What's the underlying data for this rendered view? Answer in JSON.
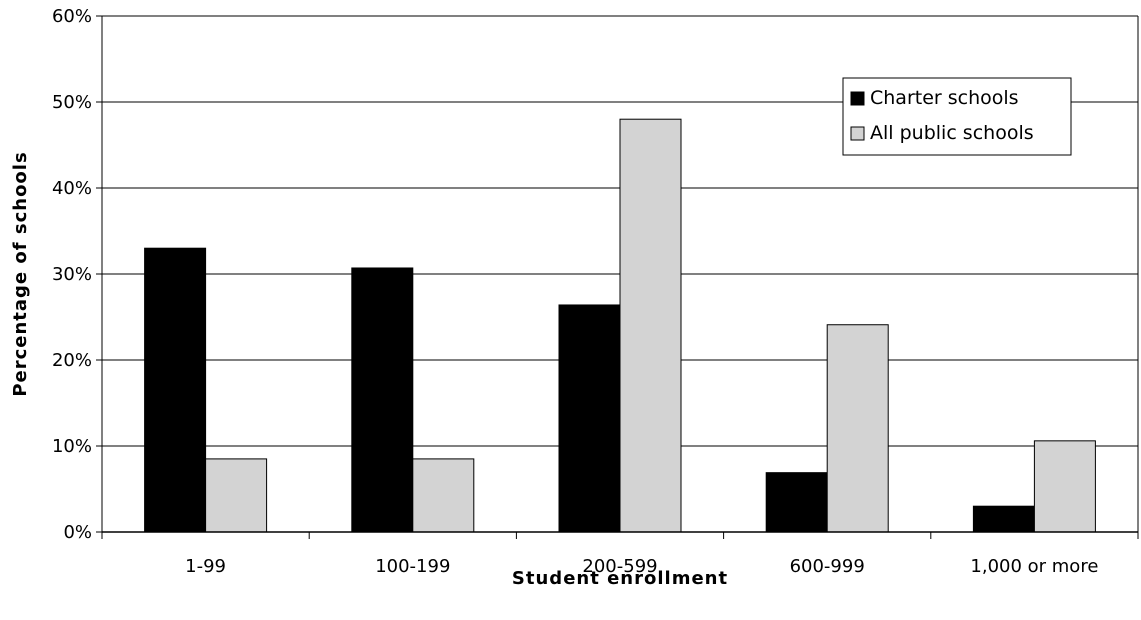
{
  "chart_data": {
    "type": "bar",
    "categories": [
      "1-99",
      "100-199",
      "200-599",
      "600-999",
      "1,000 or more"
    ],
    "series": [
      {
        "name": "Charter schools",
        "values": [
          33,
          30.7,
          26.4,
          6.9,
          3.0
        ],
        "color": "#000000"
      },
      {
        "name": "All public schools",
        "values": [
          8.5,
          8.5,
          48.0,
          24.1,
          10.6
        ],
        "color": "#d3d3d3"
      }
    ],
    "title": "",
    "xlabel": "Student enrollment",
    "ylabel": "Percentage of schools",
    "ylim": [
      0,
      60
    ],
    "yticks": [
      "0%",
      "10%",
      "20%",
      "30%",
      "40%",
      "50%",
      "60%"
    ],
    "grid": true,
    "legend_position": "top-right"
  }
}
